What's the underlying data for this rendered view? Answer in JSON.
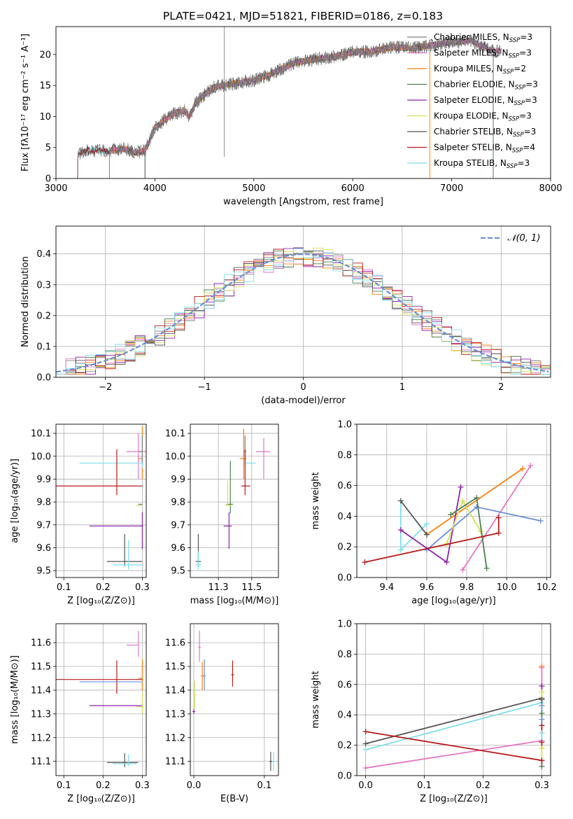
{
  "figure_title": "PLATE=0421, MJD=51821, FIBERID=0186, z=0.183",
  "colors": {
    "Chabrier MILES": "#808080",
    "Salpeter MILES": "#e377c2",
    "Kroupa MILES": "#ff7f0e",
    "Chabrier ELODIE": "#4f7f4f",
    "Salpeter ELODIE": "#8e24aa",
    "Kroupa ELODIE": "#d4e157",
    "Chabrier STELIB": "#555555",
    "Salpeter STELIB": "#b71c1c",
    "Kroupa STELIB": "#80deea",
    "gaussian": "#6a8fd8",
    "blue_model": "#6a8fd8"
  },
  "chart_data": [
    {
      "id": "spectrum",
      "type": "line",
      "title": "PLATE=0421, MJD=51821, FIBERID=0186, z=0.183",
      "xlabel": "wavelength [Angstrom, rest frame]",
      "ylabel": "Flux [fλ10⁻¹⁷ erg cm⁻² s⁻¹ A⁻¹]",
      "xlim": [
        3000,
        8000
      ],
      "ylim": [
        0,
        24.5
      ],
      "xticks": [
        3000,
        4000,
        5000,
        6000,
        7000,
        8000
      ],
      "yticks": [
        0,
        5,
        10,
        15,
        20
      ],
      "grid": false,
      "legend_position": "top-right",
      "legend": [
        {
          "name": "Chabrier MILES",
          "sub": "SSP",
          "n": "3"
        },
        {
          "name": "Salpeter MILES",
          "sub": "SSP",
          "n": "3"
        },
        {
          "name": "Kroupa MILES",
          "sub": "SSP",
          "n": "2"
        },
        {
          "name": "Chabrier ELODIE",
          "sub": "SSP",
          "n": "3"
        },
        {
          "name": "Salpeter ELODIE",
          "sub": "SSP",
          "n": "3"
        },
        {
          "name": "Kroupa ELODIE",
          "sub": "SSP",
          "n": "3"
        },
        {
          "name": "Chabrier STELIB",
          "sub": "SSP",
          "n": "3"
        },
        {
          "name": "Salpeter STELIB",
          "sub": "SSP",
          "n": "4"
        },
        {
          "name": "Kroupa STELIB",
          "sub": "SSP",
          "n": "3"
        }
      ],
      "continuum": [
        [
          3220,
          3.8
        ],
        [
          3300,
          4.6
        ],
        [
          3500,
          4.4
        ],
        [
          3700,
          4.8
        ],
        [
          3800,
          4.2
        ],
        [
          3900,
          4.5
        ],
        [
          3950,
          6.2
        ],
        [
          4000,
          8.2
        ],
        [
          4100,
          9.5
        ],
        [
          4200,
          10.5
        ],
        [
          4300,
          11
        ],
        [
          4350,
          9.8
        ],
        [
          4400,
          12
        ],
        [
          4500,
          13.5
        ],
        [
          4600,
          14.8
        ],
        [
          4800,
          15.3
        ],
        [
          5000,
          15.8
        ],
        [
          5200,
          17.0
        ],
        [
          5400,
          18.6
        ],
        [
          5600,
          19.2
        ],
        [
          5800,
          19.6
        ],
        [
          6000,
          20.4
        ],
        [
          6200,
          20.5
        ],
        [
          6400,
          21.2
        ],
        [
          6600,
          21.0
        ],
        [
          6800,
          21.5
        ],
        [
          7000,
          22.0
        ],
        [
          7200,
          22.2
        ],
        [
          7400,
          20.6
        ],
        [
          7500,
          20.5
        ]
      ],
      "model_starts": {
        "MILES": 3540,
        "ELODIE": 3900,
        "STELIB": 3220,
        "kroupa_miles_end": 6780,
        "elodie_end": 7420
      }
    },
    {
      "id": "residual_hist",
      "type": "line",
      "xlabel": "(data-model)/error",
      "ylabel": "Normed distribution",
      "xlim": [
        -2.5,
        2.5
      ],
      "ylim": [
        0,
        0.49
      ],
      "xticks": [
        -2,
        -1,
        0,
        1,
        2
      ],
      "yticks": [
        0.0,
        0.1,
        0.2,
        0.3,
        0.4
      ],
      "grid": true,
      "legend_position": "top-right",
      "legend_label": "𝒩(0, 1)",
      "gaussian": {
        "mean": 0,
        "sigma": 1
      }
    },
    {
      "id": "z_age",
      "type": "scatter",
      "xlabel": "Z [log₁₀(Z/Z⊙)]",
      "ylabel": "age  [log₁₀(age/yr)]",
      "xlim": [
        0.08,
        0.31
      ],
      "ylim": [
        9.47,
        10.14
      ],
      "xticks": [
        0.1,
        0.2,
        0.3
      ],
      "yticks": [
        9.5,
        9.6,
        9.7,
        9.8,
        9.9,
        10.0,
        10.1
      ],
      "grid": true,
      "points": [
        {
          "model": "Salpeter MILES",
          "x": 0.29,
          "y": 10.02,
          "xerr": [
            0.03,
            0.02
          ],
          "yerr": [
            0.12,
            0.08
          ]
        },
        {
          "model": "Kroupa MILES",
          "x": 0.3,
          "y": 9.99,
          "xerr": [
            0.01,
            0.0
          ],
          "yerr": [
            0.09,
            0.14
          ]
        },
        {
          "model": "Chabrier MILES",
          "x": 0.3,
          "y": 10.02,
          "xerr": [
            0.01,
            0.0
          ],
          "yerr": [
            0.06,
            0.07
          ]
        },
        {
          "model": "Kroupa STELIB",
          "x": 0.3,
          "y": 9.97,
          "xerr": [
            0.16,
            0.0
          ],
          "yerr": [
            0.02,
            0.0
          ]
        },
        {
          "model": "Salpeter STELIB",
          "x": 0.235,
          "y": 9.87,
          "xerr": [
            0.155,
            0.065
          ],
          "yerr": [
            0.04,
            0.16
          ]
        },
        {
          "model": "Chabrier ELODIE",
          "x": 0.3,
          "y": 9.79,
          "xerr": [
            0.01,
            0.0
          ],
          "yerr": [
            0.0,
            0.0
          ]
        },
        {
          "model": "Kroupa ELODIE",
          "x": 0.3,
          "y": 9.785,
          "xerr": [
            0.015,
            0.0
          ],
          "yerr": [
            0.0,
            0.0
          ]
        },
        {
          "model": "Salpeter ELODIE",
          "x": 0.3,
          "y": 9.695,
          "xerr": [
            0.135,
            0.0
          ],
          "yerr": [
            0.1,
            0.06
          ]
        },
        {
          "model": "Chabrier STELIB",
          "x": 0.255,
          "y": 9.54,
          "xerr": [
            0.045,
            0.045
          ],
          "yerr": [
            0.02,
            0.12
          ]
        },
        {
          "model": "Kroupa STELIB",
          "x": 0.265,
          "y": 9.525,
          "xerr": [
            0.04,
            0.035
          ],
          "yerr": [
            0.02,
            0.11
          ]
        }
      ]
    },
    {
      "id": "mass_age",
      "type": "scatter",
      "xlabel": "mass [log₁₀(M/M⊙)]",
      "ylabel": "",
      "xlim": [
        11.04,
        11.7
      ],
      "ylim": [
        9.47,
        10.14
      ],
      "xticks": [
        11.25,
        11.5
      ],
      "yticks": [
        9.5,
        9.6,
        9.7,
        9.8,
        9.9,
        10.0,
        10.1
      ],
      "grid": true,
      "points": [
        {
          "model": "Salpeter MILES",
          "x": 11.59,
          "y": 10.02,
          "xerr": [
            0.06,
            0.05
          ],
          "yerr": [
            0.12,
            0.06
          ]
        },
        {
          "model": "Kroupa MILES",
          "x": 11.44,
          "y": 9.99,
          "xerr": [
            0.03,
            0.02
          ],
          "yerr": [
            0.09,
            0.13
          ]
        },
        {
          "model": "Chabrier MILES",
          "x": 11.45,
          "y": 10.02,
          "xerr": [
            0.01,
            0.01
          ],
          "yerr": [
            0.06,
            0.07
          ]
        },
        {
          "model": "Kroupa STELIB",
          "x": 11.5,
          "y": 9.97,
          "xerr": [
            0.05,
            0.03
          ],
          "yerr": [
            0.0,
            0.0
          ]
        },
        {
          "model": "Salpeter STELIB",
          "x": 11.45,
          "y": 9.87,
          "xerr": [
            0.03,
            0.04
          ],
          "yerr": [
            0.04,
            0.16
          ]
        },
        {
          "model": "Chabrier ELODIE",
          "x": 11.34,
          "y": 9.79,
          "xerr": [
            0.03,
            0.02
          ],
          "yerr": [
            0.04,
            0.19
          ]
        },
        {
          "model": "Kroupa ELODIE",
          "x": 11.32,
          "y": 9.785,
          "xerr": [
            0.02,
            0.03
          ],
          "yerr": [
            0.0,
            0.11
          ]
        },
        {
          "model": "Salpeter ELODIE",
          "x": 11.33,
          "y": 9.695,
          "xerr": [
            0.04,
            0.02
          ],
          "yerr": [
            0.1,
            0.06
          ]
        },
        {
          "model": "Chabrier STELIB",
          "x": 11.1,
          "y": 9.54,
          "xerr": [
            0.02,
            0.02
          ],
          "yerr": [
            0.02,
            0.12
          ]
        },
        {
          "model": "Kroupa STELIB",
          "x": 11.1,
          "y": 9.525,
          "xerr": [
            0.02,
            0.02
          ],
          "yerr": [
            0.02,
            0.06
          ]
        }
      ]
    },
    {
      "id": "age_weight",
      "type": "line",
      "xlabel": "age  [log₁₀(age/yr)]",
      "ylabel": "mass weight",
      "xlim": [
        9.25,
        10.22
      ],
      "ylim": [
        0,
        1.0
      ],
      "xticks": [
        9.4,
        9.6,
        9.8,
        10.0,
        10.2
      ],
      "yticks": [
        0.0,
        0.2,
        0.4,
        0.6,
        0.8,
        1.0
      ],
      "grid": true,
      "series": [
        {
          "model": "Kroupa MILES",
          "points": [
            [
              9.6,
              0.28
            ],
            [
              10.08,
              0.71
            ]
          ]
        },
        {
          "model": "Salpeter MILES",
          "points": [
            [
              9.78,
              0.05
            ],
            [
              10.12,
              0.73
            ]
          ]
        },
        {
          "model": "Kroupa STELIB",
          "points": [
            [
              9.47,
              0.5
            ],
            [
              9.47,
              0.18
            ],
            [
              9.6,
              0.35
            ]
          ]
        },
        {
          "model": "Chabrier STELIB",
          "points": [
            [
              9.47,
              0.5
            ],
            [
              9.6,
              0.28
            ]
          ]
        },
        {
          "model": "Blue",
          "points": [
            [
              9.6,
              0.18
            ],
            [
              9.85,
              0.46
            ],
            [
              10.17,
              0.37
            ]
          ]
        },
        {
          "model": "Salpeter ELODIE",
          "points": [
            [
              9.47,
              0.31
            ],
            [
              9.7,
              0.1
            ],
            [
              9.77,
              0.59
            ]
          ]
        },
        {
          "model": "Kroupa ELODIE",
          "points": [
            [
              9.7,
              0.22
            ],
            [
              9.78,
              0.5
            ],
            [
              9.87,
              0.3
            ]
          ]
        },
        {
          "model": "Chabrier ELODIE",
          "points": [
            [
              9.72,
              0.41
            ],
            [
              9.85,
              0.52
            ],
            [
              9.9,
              0.06
            ]
          ]
        },
        {
          "model": "Salpeter STELIB",
          "points": [
            [
              9.29,
              0.1
            ],
            [
              9.96,
              0.29
            ],
            [
              9.96,
              0.39
            ]
          ]
        }
      ]
    },
    {
      "id": "z_mass",
      "type": "scatter",
      "xlabel": "Z [log₁₀(Z/Z⊙)]",
      "ylabel": "mass [log₁₀(M/M⊙)]",
      "xlim": [
        0.08,
        0.31
      ],
      "ylim": [
        11.04,
        11.68
      ],
      "xticks": [
        0.1,
        0.2,
        0.3
      ],
      "yticks": [
        11.1,
        11.2,
        11.3,
        11.4,
        11.5,
        11.6
      ],
      "grid": true,
      "points": [
        {
          "model": "Salpeter MILES",
          "x": 0.29,
          "y": 11.59,
          "xerr": [
            0.03,
            0.0
          ],
          "yerr": [
            0.05,
            0.06
          ]
        },
        {
          "model": "Kroupa MILES",
          "x": 0.3,
          "y": 11.45,
          "xerr": [
            0.01,
            0.0
          ],
          "yerr": [
            0.05,
            0.08
          ]
        },
        {
          "model": "Salpeter STELIB",
          "x": 0.235,
          "y": 11.445,
          "xerr": [
            0.155,
            0.065
          ],
          "yerr": [
            0.06,
            0.08
          ]
        },
        {
          "model": "Blue",
          "x": 0.3,
          "y": 11.435,
          "xerr": [
            0.16,
            0.0
          ],
          "yerr": [
            0.0,
            0.0
          ]
        },
        {
          "model": "Salpeter ELODIE",
          "x": 0.3,
          "y": 11.335,
          "xerr": [
            0.135,
            0.0
          ],
          "yerr": [
            0.0,
            0.0
          ]
        },
        {
          "model": "Kroupa ELODIE",
          "x": 0.3,
          "y": 11.33,
          "xerr": [
            0.015,
            0.0
          ],
          "yerr": [
            0.03,
            0.06
          ]
        },
        {
          "model": "Chabrier STELIB",
          "x": 0.255,
          "y": 11.095,
          "xerr": [
            0.045,
            0.035
          ],
          "yerr": [
            0.02,
            0.04
          ]
        },
        {
          "model": "Kroupa STELIB",
          "x": 0.265,
          "y": 11.09,
          "xerr": [
            0.04,
            0.02
          ],
          "yerr": [
            0.01,
            0.04
          ]
        }
      ]
    },
    {
      "id": "ebv_mass",
      "type": "scatter",
      "xlabel": "E(B-V)",
      "ylabel": "",
      "xlim": [
        -0.005,
        0.12
      ],
      "ylim": [
        11.04,
        11.68
      ],
      "xticks": [
        0.0,
        0.1
      ],
      "yticks": [
        11.1,
        11.2,
        11.3,
        11.4,
        11.5,
        11.6
      ],
      "grid": true,
      "points": [
        {
          "model": "Salpeter MILES",
          "x": 0.008,
          "y": 11.58,
          "yerr": [
            0.06,
            0.07
          ]
        },
        {
          "model": "Kroupa MILES",
          "x": 0.012,
          "y": 11.46,
          "yerr": [
            0.06,
            0.06
          ]
        },
        {
          "model": "Blue",
          "x": 0.015,
          "y": 11.46,
          "yerr": [
            0.06,
            0.07
          ]
        },
        {
          "model": "Salpeter STELIB",
          "x": 0.055,
          "y": 11.465,
          "yerr": [
            0.05,
            0.06
          ]
        },
        {
          "model": "Kroupa ELODIE",
          "x": 0.001,
          "y": 11.38,
          "yerr": [
            0.06,
            0.06
          ]
        },
        {
          "model": "Salpeter ELODIE",
          "x": 0.0,
          "y": 11.31,
          "yerr": [
            0.01,
            0.01
          ]
        },
        {
          "model": "Chabrier STELIB",
          "x": 0.109,
          "y": 11.1,
          "yerr": [
            0.04,
            0.04
          ]
        },
        {
          "model": "Kroupa STELIB",
          "x": 0.113,
          "y": 11.1,
          "yerr": [
            0.04,
            0.04
          ]
        }
      ]
    },
    {
      "id": "z_weight",
      "type": "line",
      "xlabel": "Z [log₁₀(Z/Z⊙)]",
      "ylabel": "mass weight",
      "xlim": [
        -0.015,
        0.315
      ],
      "ylim": [
        0,
        1.0
      ],
      "xticks": [
        0.0,
        0.1,
        0.2,
        0.3
      ],
      "yticks": [
        0.0,
        0.2,
        0.4,
        0.6,
        0.8,
        1.0
      ],
      "grid": true,
      "series": [
        {
          "model": "Chabrier STELIB",
          "points": [
            [
              0.0,
              0.21
            ],
            [
              0.3,
              0.51
            ]
          ]
        },
        {
          "model": "Kroupa STELIB",
          "points": [
            [
              0.0,
              0.17
            ],
            [
              0.3,
              0.48
            ]
          ]
        },
        {
          "model": "Salpeter MILES",
          "points": [
            [
              0.0,
              0.05
            ],
            [
              0.3,
              0.23
            ]
          ]
        },
        {
          "model": "Salpeter STELIB",
          "points": [
            [
              0.0,
              0.29
            ],
            [
              0.3,
              0.1
            ]
          ]
        }
      ],
      "stack_x": 0.3,
      "stack_values": [
        0.72,
        0.71,
        0.59,
        0.55,
        0.5,
        0.46,
        0.41,
        0.37,
        0.33,
        0.28,
        0.22,
        0.18,
        0.1,
        0.06
      ]
    }
  ]
}
